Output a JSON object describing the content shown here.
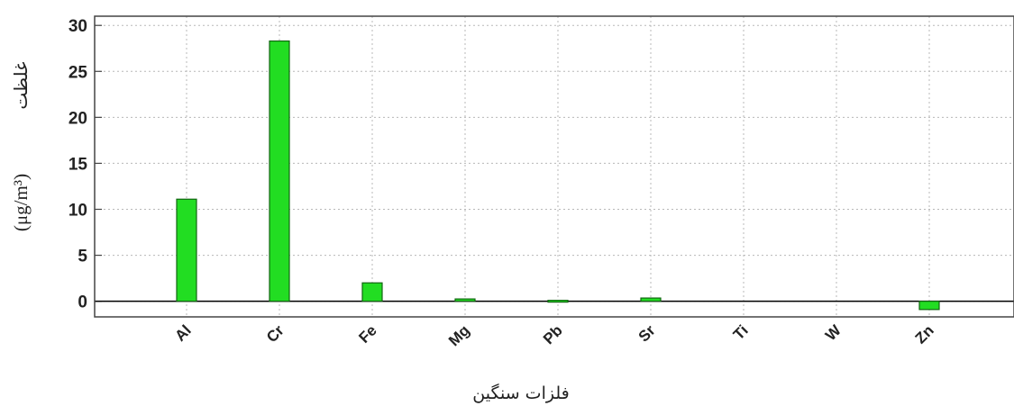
{
  "chart_data": {
    "type": "bar",
    "categories": [
      "Al",
      "Cr",
      "Fe",
      "Mg",
      "Pb",
      "Sr",
      "Ti",
      "W",
      "Zn"
    ],
    "values": [
      11.1,
      28.3,
      2.0,
      0.25,
      0.1,
      0.35,
      0,
      0,
      -0.9
    ],
    "ylim": [
      -1.7,
      31
    ],
    "yticks": [
      0,
      5,
      10,
      15,
      20,
      25,
      30
    ],
    "xlabel": "فلزات سنگین",
    "ylabel_fa": "غلظت",
    "ylabel_unit": "(μg/m³)",
    "grid": true,
    "bar_color": "#22dd22",
    "bar_edge": "#116611"
  }
}
